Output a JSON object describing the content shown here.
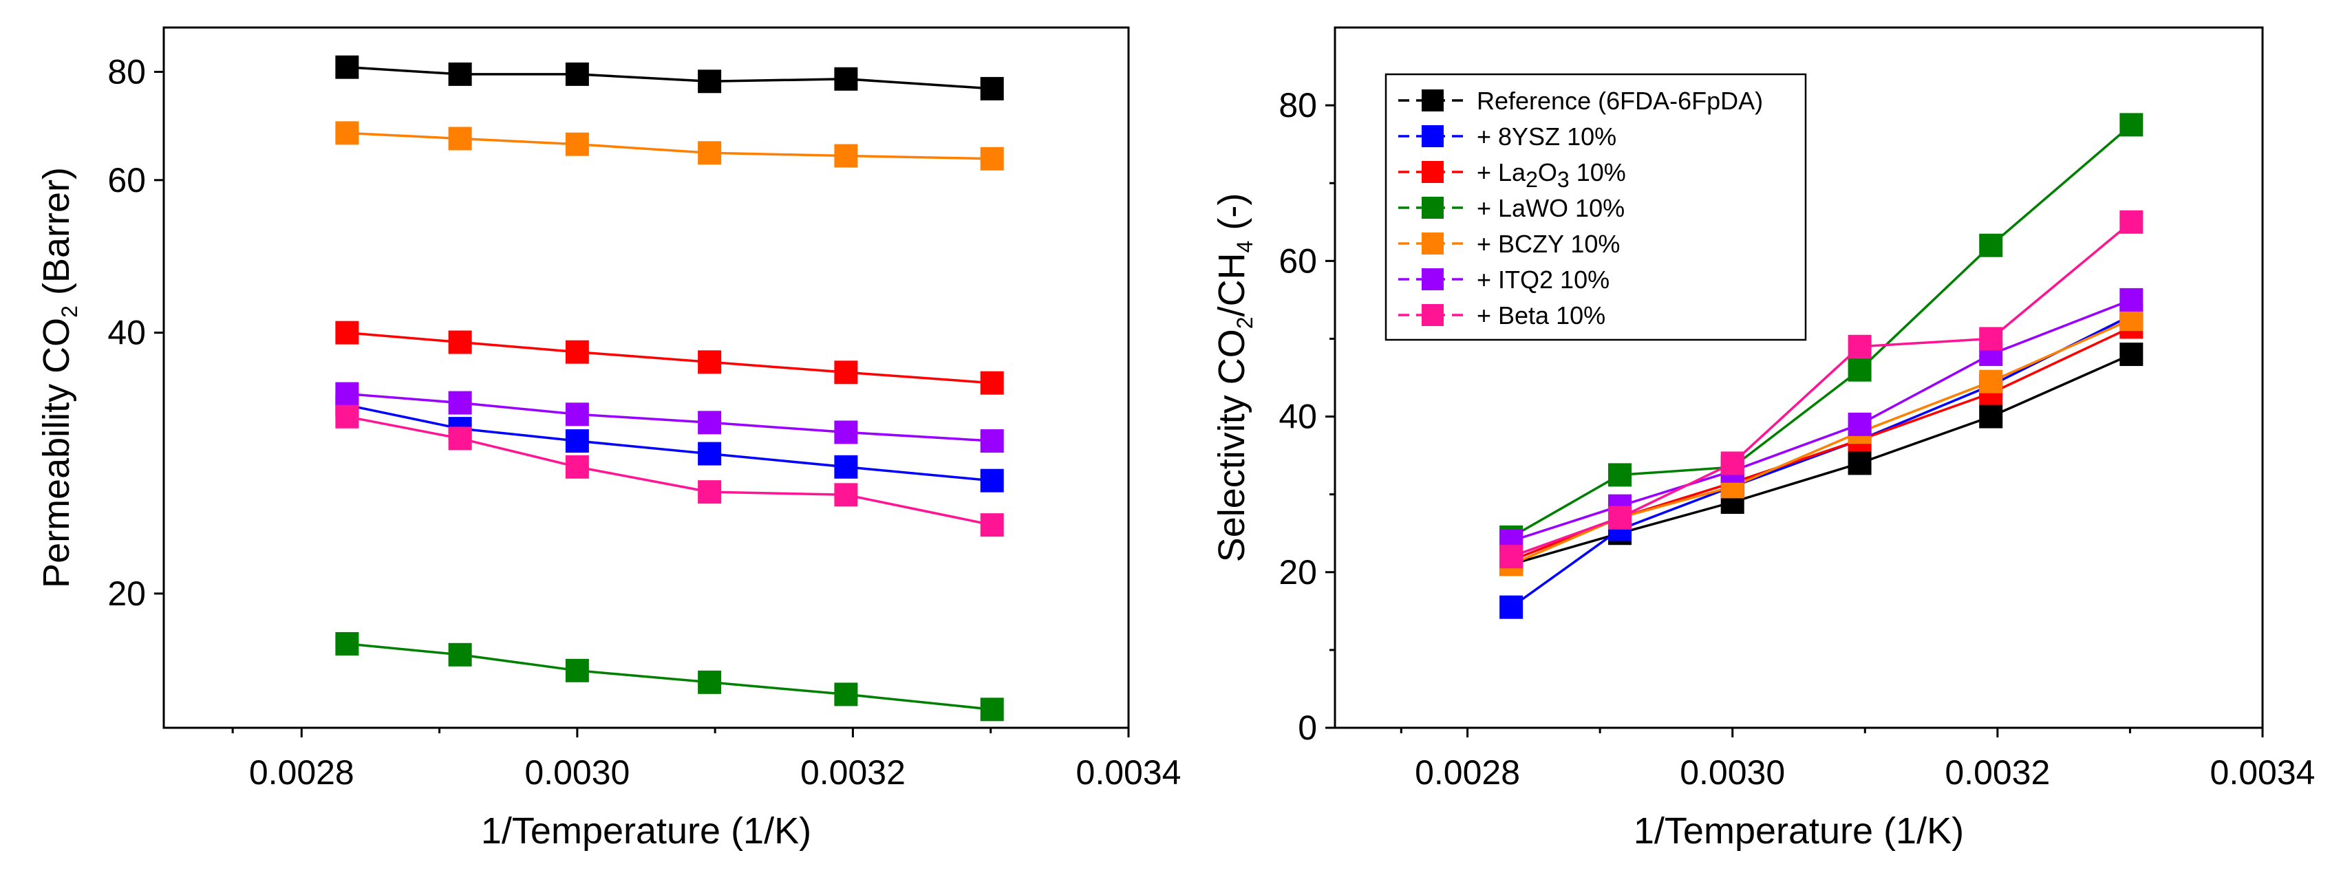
{
  "chart_data": [
    {
      "type": "line",
      "name": "permeability",
      "xlabel": "1/Temperature (1/K)",
      "ylabel": {
        "main": "Permeability CO",
        "sub": "2",
        "rest": " (Barrer)"
      },
      "yscale": "log",
      "xlim": [
        0.0027,
        0.0034
      ],
      "ylim": [
        14,
        90
      ],
      "xticks": [
        0.0028,
        0.003,
        0.0032,
        0.0034
      ],
      "xtick_labels": [
        "0.0028",
        "0.0030",
        "0.0032",
        "0.0034"
      ],
      "yticks": [
        20,
        40,
        60,
        80
      ],
      "ytick_labels": [
        "20",
        "40",
        "60",
        "80"
      ],
      "x": [
        0.002833,
        0.002915,
        0.003,
        0.003096,
        0.003195,
        0.003301
      ],
      "series": [
        {
          "name": "Reference (6FDA-6FpDA)",
          "color": "#000000",
          "values": [
            81,
            79.5,
            79.5,
            78,
            78.5,
            76.5
          ]
        },
        {
          "name": "+ 8YSZ 10%",
          "color": "#0000ff",
          "values": [
            33,
            31,
            30,
            29,
            28,
            27
          ]
        },
        {
          "name": "+ La2O3 10%",
          "color": "#ff0000",
          "values": [
            40,
            39,
            38,
            37,
            36,
            35
          ]
        },
        {
          "name": "+ LaWO 10%",
          "color": "#008000",
          "values": [
            17.5,
            17,
            16.3,
            15.8,
            15.3,
            14.7
          ]
        },
        {
          "name": "+ BCZY 10%",
          "color": "#ff8000",
          "values": [
            68,
            67,
            66,
            64.5,
            64,
            63.5
          ]
        },
        {
          "name": "+ ITQ2 10%",
          "color": "#9900ff",
          "values": [
            34,
            33.2,
            32.2,
            31.5,
            30.7,
            30
          ]
        },
        {
          "name": "+ Beta 10%",
          "color": "#ff1493",
          "values": [
            32,
            30.2,
            28,
            26.2,
            26,
            24
          ]
        }
      ]
    },
    {
      "type": "line",
      "name": "selectivity",
      "xlabel": "1/Temperature (1/K)",
      "ylabel": {
        "main": "Selectivity CO",
        "sub": "2",
        "mid": "/CH",
        "sub2": "4",
        "rest": " (-)"
      },
      "yscale": "linear",
      "xlim": [
        0.0027,
        0.0034
      ],
      "ylim": [
        0,
        90
      ],
      "xticks": [
        0.0028,
        0.003,
        0.0032,
        0.0034
      ],
      "xtick_labels": [
        "0.0028",
        "0.0030",
        "0.0032",
        "0.0034"
      ],
      "yticks": [
        0,
        20,
        40,
        60,
        80
      ],
      "ytick_labels": [
        "0",
        "20",
        "40",
        "60",
        "80"
      ],
      "legend_position": "top-left",
      "x": [
        0.002833,
        0.002915,
        0.003,
        0.003096,
        0.003195,
        0.003301
      ],
      "series": [
        {
          "name": "Reference (6FDA-6FpDA)",
          "label_main": "Reference (6FDA-6FpDA)",
          "color": "#000000",
          "values": [
            21,
            25,
            29,
            34,
            40,
            48
          ]
        },
        {
          "name": "+ 8YSZ 10%",
          "label_main": "+ 8YSZ 10%",
          "color": "#0000ff",
          "values": [
            15.5,
            25.5,
            31,
            37,
            44,
            53
          ]
        },
        {
          "name": "+ La2O3 10%",
          "label_main": "+ La",
          "label_sub": "2",
          "label_mid": "O",
          "label_sub2": "3",
          "label_rest": " 10%",
          "color": "#ff0000",
          "values": [
            21.5,
            27,
            31.5,
            37,
            43,
            51.5
          ]
        },
        {
          "name": "+ LaWO 10%",
          "label_main": "+ LaWO 10%",
          "color": "#008000",
          "values": [
            24.5,
            32.5,
            33.5,
            46,
            62,
            77.5
          ]
        },
        {
          "name": "+ BCZY 10%",
          "label_main": "+ BCZY 10%",
          "color": "#ff8000",
          "values": [
            21,
            27,
            31,
            38,
            44.5,
            52.5
          ]
        },
        {
          "name": "+ ITQ2 10%",
          "label_main": "+ ITQ2 10%",
          "color": "#9900ff",
          "values": [
            24,
            28.5,
            33,
            39,
            48,
            55
          ]
        },
        {
          "name": "+ Beta 10%",
          "label_main": "+ Beta 10%",
          "color": "#ff1493",
          "values": [
            22,
            27,
            34,
            49,
            50,
            65
          ]
        }
      ]
    }
  ]
}
